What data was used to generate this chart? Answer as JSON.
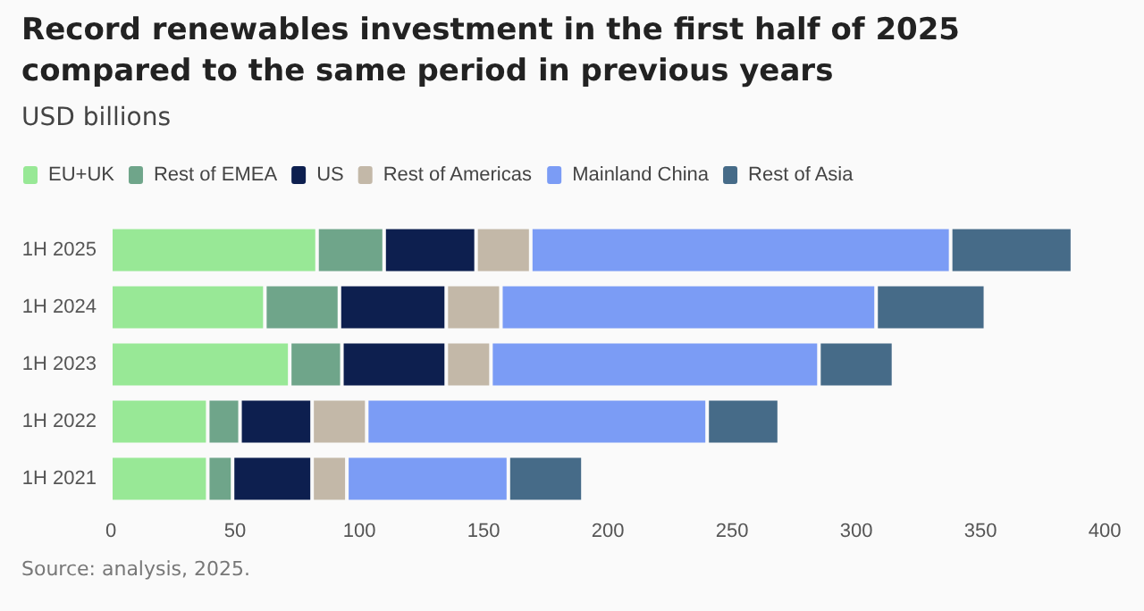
{
  "chart_data": {
    "type": "bar",
    "orientation": "horizontal",
    "stacked": true,
    "title": "Record renewables investment in the first half of 2025 compared to the same period in previous years",
    "subtitle": "USD billions",
    "categories": [
      "1H 2025",
      "1H 2024",
      "1H 2023",
      "1H 2022",
      "1H 2021"
    ],
    "series": [
      {
        "name": "EU+UK",
        "color": "#98e896",
        "values": [
          83,
          62,
          72,
          39,
          39
        ]
      },
      {
        "name": "Rest of EMEA",
        "color": "#6fa58a",
        "values": [
          27,
          30,
          21,
          13,
          10
        ]
      },
      {
        "name": "US",
        "color": "#0d1f4f",
        "values": [
          37,
          43,
          42,
          29,
          32
        ]
      },
      {
        "name": "Rest of Americas",
        "color": "#c3b8a8",
        "values": [
          22,
          22,
          18,
          22,
          14
        ]
      },
      {
        "name": "Mainland China",
        "color": "#7b9cf5",
        "values": [
          169,
          151,
          132,
          137,
          65
        ]
      },
      {
        "name": "Rest of Asia",
        "color": "#466b88",
        "values": [
          49,
          44,
          30,
          29,
          30
        ]
      }
    ],
    "xlim": [
      0,
      400
    ],
    "xticks": [
      0,
      50,
      100,
      150,
      200,
      250,
      300,
      350,
      400
    ],
    "legend": "top left",
    "annotations": [
      "Source: analysis, 2025."
    ]
  }
}
